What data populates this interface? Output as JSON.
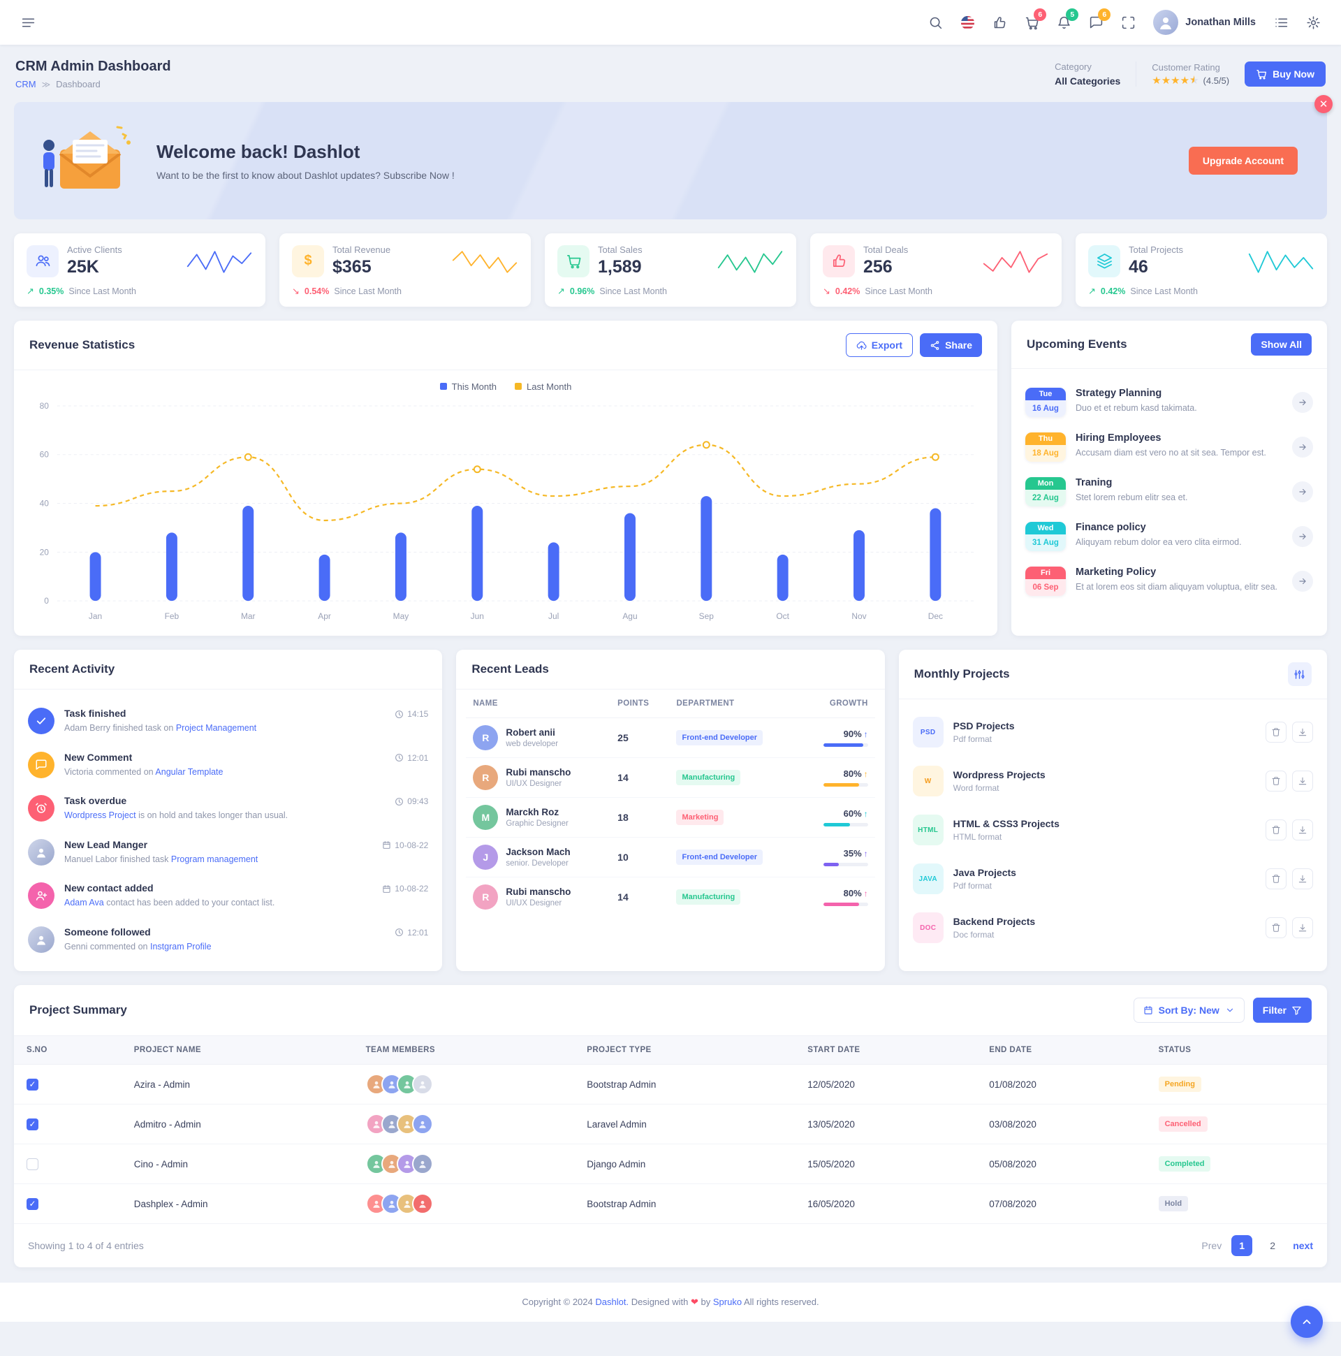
{
  "colors": {
    "primary": "#4a6cf7",
    "warning": "#ffb32c",
    "success": "#26c78f",
    "danger": "#fd6074",
    "info": "#1fc9d6",
    "pink": "#f463ac",
    "purple": "#7e62f1"
  },
  "navbar": {
    "user_name": "Jonathan Mills",
    "badges": {
      "cart": "6",
      "notifications": "5",
      "messages": "6"
    }
  },
  "page_header": {
    "title": "CRM Admin Dashboard",
    "breadcrumb_home": "CRM",
    "breadcrumb_separator": "≫",
    "breadcrumb_current": "Dashboard",
    "category_label": "Category",
    "category_value": "All Categories",
    "rating_label": "Customer Rating",
    "rating_stars": 4.5,
    "rating_text": "(4.5/5)",
    "buy_now_label": "Buy Now"
  },
  "banner": {
    "title": "Welcome back! Dashlot",
    "subtitle": "Want to be the first to know about Dashlot updates? Subscribe Now !",
    "button_label": "Upgrade Account"
  },
  "stats": [
    {
      "label": "Active Clients",
      "value": "25K",
      "delta": "0.35%",
      "trend": "up",
      "note": "Since Last Month",
      "color": "#4a6cf7",
      "spark": [
        30,
        46,
        26,
        50,
        22,
        44,
        34,
        48
      ]
    },
    {
      "label": "Total Revenue",
      "value": "$365",
      "delta": "0.54%",
      "trend": "down",
      "note": "Since Last Month",
      "color": "#ffb32c",
      "spark": [
        42,
        55,
        34,
        50,
        30,
        46,
        24,
        38
      ]
    },
    {
      "label": "Total Sales",
      "value": "1,589",
      "delta": "0.96%",
      "trend": "up",
      "note": "Since Last Month",
      "color": "#26c78f",
      "spark": [
        28,
        50,
        24,
        46,
        20,
        52,
        34,
        56
      ]
    },
    {
      "label": "Total Deals",
      "value": "256",
      "delta": "0.42%",
      "trend": "down",
      "note": "Since Last Month",
      "color": "#fd6074",
      "spark": [
        36,
        24,
        46,
        30,
        56,
        22,
        44,
        52
      ]
    },
    {
      "label": "Total Projects",
      "value": "46",
      "delta": "0.42%",
      "trend": "up",
      "note": "Since Last Month",
      "color": "#1fc9d6",
      "spark": [
        52,
        22,
        56,
        26,
        50,
        30,
        46,
        28
      ]
    }
  ],
  "revenue": {
    "title": "Revenue Statistics",
    "export_label": "Export",
    "share_label": "Share"
  },
  "chart_data": {
    "type": "bar",
    "title": "Revenue Statistics",
    "categories": [
      "Jan",
      "Feb",
      "Mar",
      "Apr",
      "May",
      "Jun",
      "Jul",
      "Agu",
      "Sep",
      "Oct",
      "Nov",
      "Dec"
    ],
    "series": [
      {
        "name": "This Month",
        "type": "bar",
        "color": "#4a6cf7",
        "values": [
          20,
          28,
          39,
          19,
          28,
          39,
          24,
          36,
          43,
          19,
          29,
          38
        ]
      },
      {
        "name": "Last Month",
        "type": "line",
        "color": "#f5b825",
        "values": [
          39,
          45,
          59,
          33,
          40,
          54,
          43,
          47,
          64,
          43,
          48,
          59
        ]
      }
    ],
    "marker_indices": [
      2,
      5,
      8,
      11
    ],
    "xlabel": "",
    "ylabel": "",
    "ylim": [
      0,
      80
    ],
    "yticks": [
      0,
      20,
      40,
      60,
      80
    ],
    "grid": true,
    "legend_position": "top"
  },
  "events": {
    "title": "Upcoming Events",
    "show_all_label": "Show All",
    "items": [
      {
        "day": "Tue",
        "date": "16 Aug",
        "color": "#4a6cf7",
        "tint": "#edf1fe",
        "title": "Strategy Planning",
        "desc": "Duo et et rebum kasd takimata."
      },
      {
        "day": "Thu",
        "date": "18 Aug",
        "color": "#ffb32c",
        "tint": "#fff5e0",
        "title": "Hiring Employees",
        "desc": "Accusam diam est vero no at sit sea. Tempor est."
      },
      {
        "day": "Mon",
        "date": "22 Aug",
        "color": "#26c78f",
        "tint": "#e5faf1",
        "title": "Traning",
        "desc": "Stet lorem rebum elitr sea et."
      },
      {
        "day": "Wed",
        "date": "31 Aug",
        "color": "#1fc9d6",
        "tint": "#e2f8fb",
        "title": "Finance policy",
        "desc": "Aliquyam rebum dolor ea vero clita eirmod."
      },
      {
        "day": "Fri",
        "date": "06 Sep",
        "color": "#fd6074",
        "tint": "#ffe9ed",
        "title": "Marketing Policy",
        "desc": "Et at lorem eos sit diam aliquyam voluptua, elitr sea."
      }
    ]
  },
  "activity": {
    "title": "Recent Activity",
    "items": [
      {
        "title": "Task finished",
        "pre": "Adam Berry finished task on",
        "link": "Project Management",
        "post": "",
        "time": "14:15"
      },
      {
        "title": "New Comment",
        "pre": "Victoria commented on",
        "link": "Angular Template",
        "post": "",
        "time": "12:01"
      },
      {
        "title": "Task overdue",
        "pre": "",
        "link": "Wordpress Project",
        "post": "is on hold and takes longer than usual.",
        "time": "09:43"
      },
      {
        "title": "New Lead Manger",
        "pre": "Manuel Labor finished task",
        "link": "Program management",
        "post": "",
        "time": "10-08-22"
      },
      {
        "title": "New contact added",
        "pre": "",
        "link": "Adam Ava",
        "post": "contact has been added to your contact list.",
        "time": "10-08-22"
      },
      {
        "title": "Someone followed",
        "pre": "Genni commented on",
        "link": "Instgram Profile",
        "post": "",
        "time": "12:01"
      }
    ]
  },
  "leads": {
    "title": "Recent Leads",
    "columns": [
      "NAME",
      "POINTS",
      "DEPARTMENT",
      "GROWTH"
    ],
    "rows": [
      {
        "name": "Robert anii",
        "role": "web developer",
        "points": "25",
        "dept": "Front-end Developer",
        "dept_color": "blue",
        "growth": "90%",
        "bar": 90,
        "bar_color": "#4a6cf7",
        "avatar_color": "#8da4f0"
      },
      {
        "name": "Rubi manscho",
        "role": "UI/UX Designer",
        "points": "14",
        "dept": "Manufacturing",
        "dept_color": "green",
        "growth": "80%",
        "bar": 80,
        "bar_color": "#ffb32c",
        "avatar_color": "#e8a87c"
      },
      {
        "name": "Marckh Roz",
        "role": "Graphic Designer",
        "points": "18",
        "dept": "Marketing",
        "dept_color": "red",
        "growth": "60%",
        "bar": 60,
        "bar_color": "#1fc9d6",
        "avatar_color": "#74c69d"
      },
      {
        "name": "Jackson Mach",
        "role": "senior. Developer",
        "points": "10",
        "dept": "Front-end Developer",
        "dept_color": "blue",
        "growth": "35%",
        "bar": 35,
        "bar_color": "#7e62f1",
        "avatar_color": "#b49ae8"
      },
      {
        "name": "Rubi manscho",
        "role": "UI/UX Designer",
        "points": "14",
        "dept": "Manufacturing",
        "dept_color": "green",
        "growth": "80%",
        "bar": 80,
        "bar_color": "#f463ac",
        "avatar_color": "#f2a3c2"
      }
    ]
  },
  "monthly": {
    "title": "Monthly Projects",
    "items": [
      {
        "tag": "PSD",
        "name": "PSD Projects",
        "format": "Pdf format"
      },
      {
        "tag": "W",
        "name": "Wordpress Projects",
        "format": "Word format"
      },
      {
        "tag": "HTML",
        "name": "HTML & CSS3 Projects",
        "format": "HTML format"
      },
      {
        "tag": "JAVA",
        "name": "Java Projects",
        "format": "Pdf format"
      },
      {
        "tag": "DOC",
        "name": "Backend Projects",
        "format": "Doc format"
      }
    ]
  },
  "summary": {
    "title": "Project Summary",
    "sort_label": "Sort By: New",
    "filter_label": "Filter",
    "columns": [
      "S.NO",
      "PROJECT NAME",
      "TEAM MEMBERS",
      "PROJECT TYPE",
      "START DATE",
      "END DATE",
      "STATUS"
    ],
    "rows": [
      {
        "checked": true,
        "name": "Azira - Admin",
        "type": "Bootstrap Admin",
        "start": "12/05/2020",
        "end": "01/08/2020",
        "status": "Pending",
        "status_color": "yellow",
        "member_colors": [
          "#e8a87c",
          "#8da4f0",
          "#74c69d",
          "#d8dce8"
        ]
      },
      {
        "checked": true,
        "name": "Admitro - Admin",
        "type": "Laravel Admin",
        "start": "13/05/2020",
        "end": "03/08/2020",
        "status": "Cancelled",
        "status_color": "red",
        "member_colors": [
          "#f2a3c2",
          "#9aa7cd",
          "#e8c07c",
          "#8da4f0"
        ]
      },
      {
        "checked": false,
        "name": "Cino - Admin",
        "type": "Django Admin",
        "start": "15/05/2020",
        "end": "05/08/2020",
        "status": "Completed",
        "status_color": "green",
        "member_colors": [
          "#74c69d",
          "#e8a87c",
          "#b49ae8",
          "#9aa7cd"
        ]
      },
      {
        "checked": true,
        "name": "Dashplex - Admin",
        "type": "Bootstrap Admin",
        "start": "16/05/2020",
        "end": "07/08/2020",
        "status": "Hold",
        "status_color": "slate",
        "member_colors": [
          "#fd8f8f",
          "#8da4f0",
          "#e8c07c",
          "#f26d6d"
        ]
      }
    ],
    "showing_text": "Showing 1 to 4 of 4 entries",
    "pager": {
      "prev": "Prev",
      "page1": "1",
      "page2": "2",
      "next": "next"
    }
  },
  "footer": {
    "copyright": "Copyright © 2024",
    "brand": "Dashlot.",
    "designed": "Designed with",
    "heart": "❤",
    "by": "by",
    "company": "Spruko",
    "rights": "All rights reserved."
  }
}
